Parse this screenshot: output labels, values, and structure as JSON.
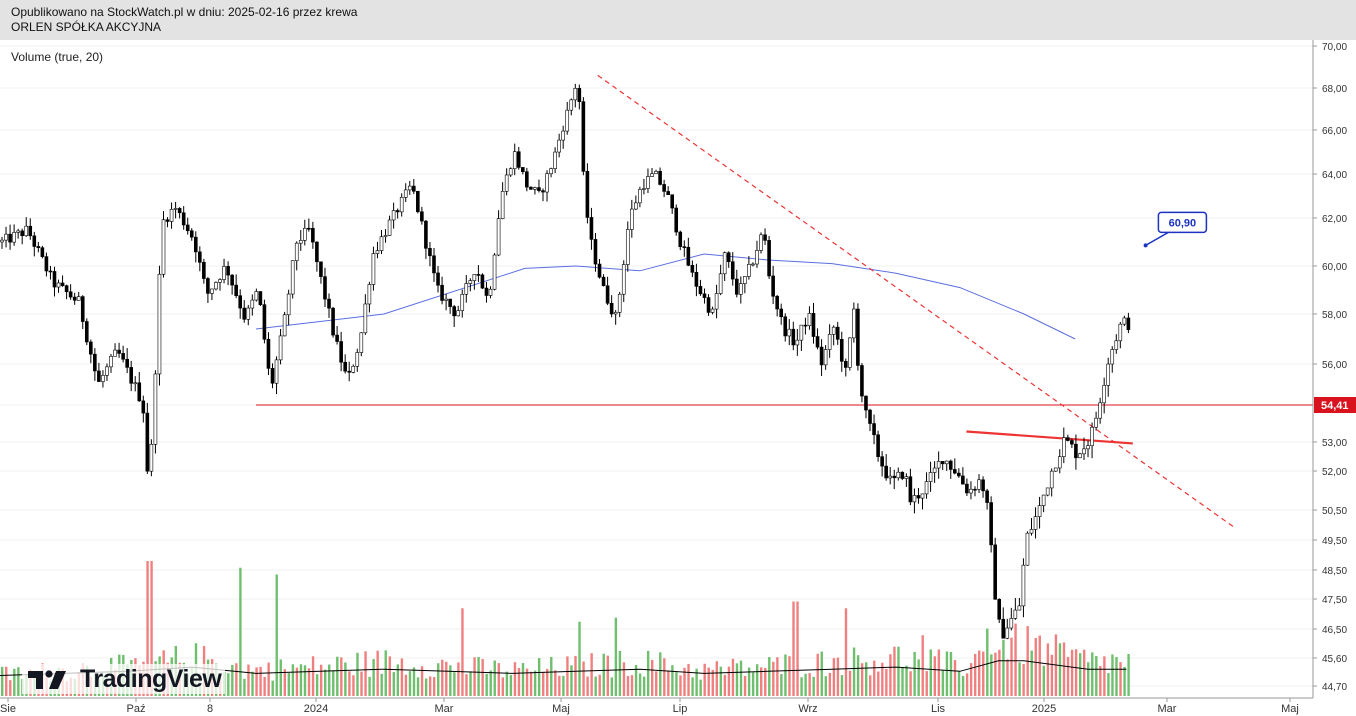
{
  "header": {
    "line1": "Opublikowano na StockWatch.pl w dniu: 2025-02-16 przez krewa",
    "line2": "ORLEN SPÓŁKA AKCYJNA"
  },
  "indicator_label": "Volume (true, 20)",
  "logo_text": "TradingView",
  "colors": {
    "up": "#6fbf6f",
    "down": "#f08080",
    "candle": "#000000",
    "ma": "#5b6ee1",
    "support": "#d9131d",
    "trendline": "#ee3333",
    "callout": "#1a33c0",
    "header_bg": "#e3e3e3"
  },
  "chart_data": {
    "type": "candlestick",
    "price_axis": {
      "ticks": [
        "70,00",
        "68,00",
        "66,00",
        "64,00",
        "62,00",
        "60,00",
        "58,00",
        "56,00",
        "54,41",
        "53,00",
        "52,00",
        "50,50",
        "49,50",
        "48,50",
        "47,50",
        "46,50",
        "45,60",
        "44,70"
      ],
      "highlight": "54,41"
    },
    "time_axis": [
      "Sie",
      "Paź",
      "8",
      "2024",
      "Mar",
      "Maj",
      "Lip",
      "Wrz",
      "Lis",
      "2025",
      "Mar",
      "Maj"
    ],
    "annotations": [
      {
        "type": "callout",
        "text": "60,90",
        "value": 60.9
      },
      {
        "type": "horizontal_line",
        "value": 54.41
      },
      {
        "type": "trendline_dashed",
        "from": 68.6,
        "to": 49.9
      },
      {
        "type": "trendline_solid",
        "from": 53.4,
        "to": 52.95
      }
    ],
    "moving_average_path": [
      [
        0.2,
        57.4
      ],
      [
        0.3,
        58.0
      ],
      [
        0.41,
        59.9
      ],
      [
        0.45,
        60.0
      ],
      [
        0.5,
        59.8
      ],
      [
        0.55,
        60.5
      ],
      [
        0.6,
        60.25
      ],
      [
        0.65,
        60.1
      ],
      [
        0.7,
        59.7
      ],
      [
        0.75,
        59.1
      ],
      [
        0.8,
        58.0
      ],
      [
        0.84,
        57.0
      ]
    ],
    "price_path": [
      [
        0,
        61.0
      ],
      [
        0.02,
        61.5
      ],
      [
        0.04,
        59.3
      ],
      [
        0.06,
        58.5
      ],
      [
        0.075,
        55.2
      ],
      [
        0.09,
        56.5
      ],
      [
        0.1,
        55.5
      ],
      [
        0.11,
        54.5
      ],
      [
        0.115,
        51.1
      ],
      [
        0.12,
        56.0
      ],
      [
        0.125,
        61.8
      ],
      [
        0.135,
        62.5
      ],
      [
        0.15,
        61.1
      ],
      [
        0.16,
        58.8
      ],
      [
        0.175,
        60.0
      ],
      [
        0.19,
        57.8
      ],
      [
        0.2,
        59.0
      ],
      [
        0.21,
        55.0
      ],
      [
        0.22,
        57.5
      ],
      [
        0.23,
        61.0
      ],
      [
        0.24,
        61.5
      ],
      [
        0.26,
        57.0
      ],
      [
        0.27,
        55.3
      ],
      [
        0.28,
        57.0
      ],
      [
        0.29,
        60.5
      ],
      [
        0.31,
        62.5
      ],
      [
        0.32,
        63.5
      ],
      [
        0.34,
        59.0
      ],
      [
        0.355,
        58.0
      ],
      [
        0.37,
        60.0
      ],
      [
        0.38,
        58.5
      ],
      [
        0.39,
        63.0
      ],
      [
        0.4,
        65.0
      ],
      [
        0.41,
        63.5
      ],
      [
        0.42,
        63.0
      ],
      [
        0.43,
        64.5
      ],
      [
        0.44,
        66.5
      ],
      [
        0.45,
        68.5
      ],
      [
        0.455,
        63.0
      ],
      [
        0.46,
        61.0
      ],
      [
        0.47,
        59.0
      ],
      [
        0.48,
        57.8
      ],
      [
        0.49,
        62.0
      ],
      [
        0.5,
        63.5
      ],
      [
        0.51,
        64.0
      ],
      [
        0.52,
        63.0
      ],
      [
        0.53,
        61.0
      ],
      [
        0.54,
        59.5
      ],
      [
        0.555,
        58.0
      ],
      [
        0.565,
        60.5
      ],
      [
        0.575,
        58.8
      ],
      [
        0.585,
        60.0
      ],
      [
        0.595,
        61.5
      ],
      [
        0.6,
        59.3
      ],
      [
        0.61,
        57.5
      ],
      [
        0.62,
        56.8
      ],
      [
        0.63,
        58.0
      ],
      [
        0.64,
        56.0
      ],
      [
        0.65,
        57.5
      ],
      [
        0.66,
        55.5
      ],
      [
        0.665,
        58.5
      ],
      [
        0.67,
        55.3
      ],
      [
        0.675,
        54.0
      ],
      [
        0.685,
        52.5
      ],
      [
        0.695,
        51.5
      ],
      [
        0.705,
        52.0
      ],
      [
        0.71,
        50.8
      ],
      [
        0.72,
        51.3
      ],
      [
        0.735,
        52.5
      ],
      [
        0.745,
        52.0
      ],
      [
        0.755,
        51.2
      ],
      [
        0.765,
        51.7
      ],
      [
        0.77,
        50.5
      ],
      [
        0.775,
        48.0
      ],
      [
        0.78,
        46.3
      ],
      [
        0.79,
        46.9
      ],
      [
        0.795,
        47.3
      ],
      [
        0.8,
        49.5
      ],
      [
        0.81,
        50.5
      ],
      [
        0.82,
        52.0
      ],
      [
        0.83,
        53.1
      ],
      [
        0.84,
        52.6
      ],
      [
        0.85,
        53.1
      ],
      [
        0.855,
        54.0
      ],
      [
        0.865,
        56.3
      ],
      [
        0.875,
        57.7
      ],
      [
        0.88,
        57.6
      ]
    ],
    "volume_path": [
      [
        0,
        0.25
      ],
      [
        0.05,
        0.3
      ],
      [
        0.1,
        0.35
      ],
      [
        0.15,
        0.45
      ],
      [
        0.2,
        0.3
      ],
      [
        0.25,
        0.35
      ],
      [
        0.3,
        0.4
      ],
      [
        0.35,
        0.35
      ],
      [
        0.4,
        0.3
      ],
      [
        0.45,
        0.35
      ],
      [
        0.5,
        0.4
      ],
      [
        0.55,
        0.3
      ],
      [
        0.6,
        0.35
      ],
      [
        0.65,
        0.4
      ],
      [
        0.7,
        0.45
      ],
      [
        0.75,
        0.35
      ],
      [
        0.78,
        0.6
      ],
      [
        0.8,
        0.6
      ],
      [
        0.85,
        0.4
      ],
      [
        0.88,
        0.4
      ]
    ],
    "volume_spikes": [
      [
        0.115,
        1.0
      ],
      [
        0.185,
        0.95
      ],
      [
        0.215,
        0.9
      ],
      [
        0.36,
        0.65
      ],
      [
        0.45,
        0.55
      ],
      [
        0.48,
        0.58
      ],
      [
        0.62,
        0.7
      ],
      [
        0.66,
        0.65
      ],
      [
        0.72,
        0.45
      ],
      [
        0.77,
        0.5
      ]
    ]
  }
}
